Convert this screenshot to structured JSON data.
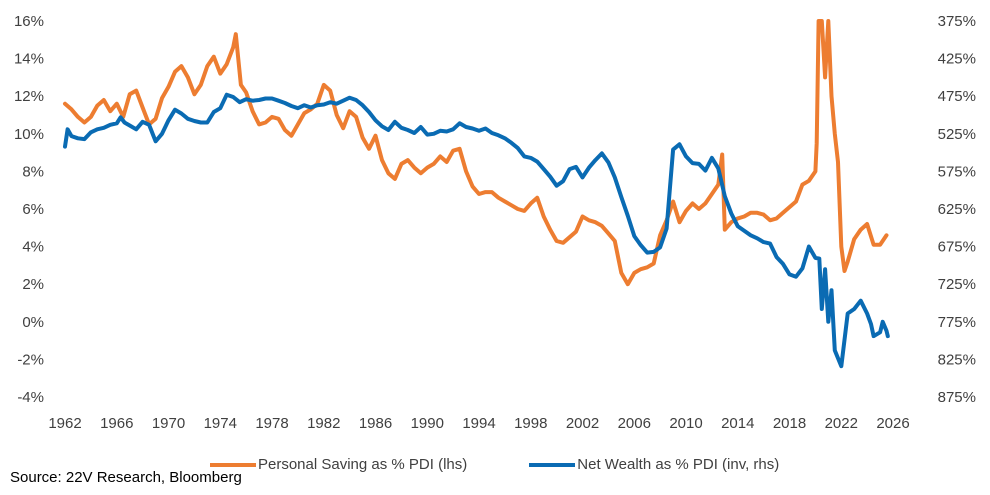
{
  "source": "Source: 22V Research, Bloomberg",
  "colors": {
    "saving": "#ED7D31",
    "wealth": "#0A6BB3"
  },
  "chart_data": {
    "type": "line",
    "title": "",
    "xlabel": "",
    "ylabel_left": "",
    "ylabel_right": "",
    "xlim": [
      1962,
      2026
    ],
    "x_ticks": [
      "1962",
      "1966",
      "1970",
      "1974",
      "1978",
      "1982",
      "1986",
      "1990",
      "1994",
      "1998",
      "2002",
      "2006",
      "2010",
      "2014",
      "2018",
      "2022",
      "2026"
    ],
    "y_left": {
      "min": -4,
      "max": 16,
      "step": 2,
      "ticks": [
        "16%",
        "14%",
        "12%",
        "10%",
        "8%",
        "6%",
        "4%",
        "2%",
        "0%",
        "-2%",
        "-4%"
      ]
    },
    "y_right": {
      "inverted": true,
      "min": 375,
      "max": 875,
      "step": 50,
      "ticks": [
        "375%",
        "425%",
        "475%",
        "525%",
        "575%",
        "625%",
        "675%",
        "725%",
        "775%",
        "825%",
        "875%"
      ]
    },
    "grid": false,
    "legend": "bottom",
    "series": [
      {
        "name": "Personal Saving as % PDI (lhs)",
        "axis": "left",
        "points": [
          [
            1962.0,
            11.6
          ],
          [
            1962.5,
            11.3
          ],
          [
            1963.0,
            10.9
          ],
          [
            1963.5,
            10.6
          ],
          [
            1964.0,
            10.9
          ],
          [
            1964.5,
            11.5
          ],
          [
            1965.0,
            11.8
          ],
          [
            1965.5,
            11.2
          ],
          [
            1966.0,
            11.6
          ],
          [
            1966.5,
            10.9
          ],
          [
            1967.0,
            12.1
          ],
          [
            1967.5,
            12.3
          ],
          [
            1968.0,
            11.4
          ],
          [
            1968.5,
            10.5
          ],
          [
            1969.0,
            10.8
          ],
          [
            1969.5,
            11.9
          ],
          [
            1970.0,
            12.5
          ],
          [
            1970.5,
            13.3
          ],
          [
            1971.0,
            13.6
          ],
          [
            1971.5,
            13.0
          ],
          [
            1972.0,
            12.1
          ],
          [
            1972.5,
            12.6
          ],
          [
            1973.0,
            13.6
          ],
          [
            1973.5,
            14.1
          ],
          [
            1974.0,
            13.2
          ],
          [
            1974.5,
            13.7
          ],
          [
            1975.0,
            14.6
          ],
          [
            1975.2,
            15.3
          ],
          [
            1975.6,
            12.6
          ],
          [
            1976.0,
            12.2
          ],
          [
            1976.5,
            11.2
          ],
          [
            1977.0,
            10.5
          ],
          [
            1977.5,
            10.6
          ],
          [
            1978.0,
            10.9
          ],
          [
            1978.5,
            10.8
          ],
          [
            1979.0,
            10.2
          ],
          [
            1979.5,
            9.9
          ],
          [
            1980.0,
            10.5
          ],
          [
            1980.5,
            11.1
          ],
          [
            1981.0,
            11.3
          ],
          [
            1981.5,
            11.6
          ],
          [
            1982.0,
            12.6
          ],
          [
            1982.5,
            12.3
          ],
          [
            1983.0,
            11.0
          ],
          [
            1983.5,
            10.3
          ],
          [
            1984.0,
            11.2
          ],
          [
            1984.5,
            10.9
          ],
          [
            1985.0,
            9.8
          ],
          [
            1985.5,
            9.2
          ],
          [
            1986.0,
            9.9
          ],
          [
            1986.5,
            8.6
          ],
          [
            1987.0,
            7.9
          ],
          [
            1987.5,
            7.6
          ],
          [
            1988.0,
            8.4
          ],
          [
            1988.5,
            8.6
          ],
          [
            1989.0,
            8.2
          ],
          [
            1989.5,
            7.9
          ],
          [
            1990.0,
            8.2
          ],
          [
            1990.5,
            8.4
          ],
          [
            1991.0,
            8.8
          ],
          [
            1991.5,
            8.5
          ],
          [
            1992.0,
            9.1
          ],
          [
            1992.5,
            9.2
          ],
          [
            1993.0,
            8.0
          ],
          [
            1993.5,
            7.2
          ],
          [
            1994.0,
            6.8
          ],
          [
            1994.5,
            6.9
          ],
          [
            1995.0,
            6.9
          ],
          [
            1995.5,
            6.6
          ],
          [
            1996.0,
            6.4
          ],
          [
            1996.5,
            6.2
          ],
          [
            1997.0,
            6.0
          ],
          [
            1997.5,
            5.9
          ],
          [
            1998.0,
            6.3
          ],
          [
            1998.5,
            6.6
          ],
          [
            1999.0,
            5.6
          ],
          [
            1999.5,
            4.9
          ],
          [
            2000.0,
            4.3
          ],
          [
            2000.5,
            4.2
          ],
          [
            2001.0,
            4.5
          ],
          [
            2001.5,
            4.8
          ],
          [
            2002.0,
            5.6
          ],
          [
            2002.5,
            5.4
          ],
          [
            2003.0,
            5.3
          ],
          [
            2003.5,
            5.1
          ],
          [
            2004.0,
            4.7
          ],
          [
            2004.5,
            4.3
          ],
          [
            2005.0,
            2.6
          ],
          [
            2005.5,
            2.0
          ],
          [
            2006.0,
            2.6
          ],
          [
            2006.5,
            2.8
          ],
          [
            2007.0,
            2.9
          ],
          [
            2007.5,
            3.1
          ],
          [
            2008.0,
            4.6
          ],
          [
            2008.5,
            5.4
          ],
          [
            2009.0,
            6.4
          ],
          [
            2009.5,
            5.3
          ],
          [
            2010.0,
            5.9
          ],
          [
            2010.5,
            6.3
          ],
          [
            2011.0,
            6.0
          ],
          [
            2011.5,
            6.3
          ],
          [
            2012.0,
            6.8
          ],
          [
            2012.5,
            7.3
          ],
          [
            2012.8,
            8.9
          ],
          [
            2013.0,
            4.9
          ],
          [
            2013.5,
            5.3
          ],
          [
            2014.0,
            5.5
          ],
          [
            2014.5,
            5.6
          ],
          [
            2015.0,
            5.8
          ],
          [
            2015.5,
            5.8
          ],
          [
            2016.0,
            5.7
          ],
          [
            2016.5,
            5.4
          ],
          [
            2017.0,
            5.5
          ],
          [
            2017.5,
            5.8
          ],
          [
            2018.0,
            6.1
          ],
          [
            2018.5,
            6.4
          ],
          [
            2019.0,
            7.3
          ],
          [
            2019.5,
            7.5
          ],
          [
            2020.0,
            8.0
          ],
          [
            2020.1,
            9.5
          ],
          [
            2020.25,
            16.0
          ],
          [
            2020.5,
            16.0
          ],
          [
            2020.75,
            13.0
          ],
          [
            2021.0,
            16.0
          ],
          [
            2021.25,
            12.0
          ],
          [
            2021.5,
            10.0
          ],
          [
            2021.75,
            8.5
          ],
          [
            2022.0,
            4.0
          ],
          [
            2022.25,
            2.7
          ],
          [
            2022.5,
            3.2
          ],
          [
            2023.0,
            4.4
          ],
          [
            2023.5,
            4.9
          ],
          [
            2024.0,
            5.2
          ],
          [
            2024.5,
            4.1
          ],
          [
            2025.0,
            4.1
          ],
          [
            2025.5,
            4.6
          ]
        ]
      },
      {
        "name": "Net Wealth as % PDI (inv, rhs)",
        "axis": "right",
        "points": [
          [
            1962.0,
            542
          ],
          [
            1962.2,
            519
          ],
          [
            1962.5,
            528
          ],
          [
            1963.0,
            531
          ],
          [
            1963.5,
            532
          ],
          [
            1964.0,
            523
          ],
          [
            1964.5,
            519
          ],
          [
            1965.0,
            517
          ],
          [
            1965.5,
            513
          ],
          [
            1966.0,
            511
          ],
          [
            1966.3,
            503
          ],
          [
            1966.6,
            510
          ],
          [
            1967.0,
            514
          ],
          [
            1967.5,
            519
          ],
          [
            1968.0,
            509
          ],
          [
            1968.5,
            513
          ],
          [
            1969.0,
            535
          ],
          [
            1969.5,
            525
          ],
          [
            1970.0,
            507
          ],
          [
            1970.5,
            493
          ],
          [
            1971.0,
            498
          ],
          [
            1971.5,
            505
          ],
          [
            1972.0,
            508
          ],
          [
            1972.5,
            510
          ],
          [
            1973.0,
            510
          ],
          [
            1973.5,
            496
          ],
          [
            1974.0,
            491
          ],
          [
            1974.5,
            473
          ],
          [
            1975.0,
            476
          ],
          [
            1975.5,
            483
          ],
          [
            1976.0,
            479
          ],
          [
            1976.5,
            481
          ],
          [
            1977.0,
            480
          ],
          [
            1977.5,
            478
          ],
          [
            1978.0,
            478
          ],
          [
            1978.5,
            481
          ],
          [
            1979.0,
            484
          ],
          [
            1979.5,
            488
          ],
          [
            1980.0,
            491
          ],
          [
            1980.5,
            487
          ],
          [
            1981.0,
            490
          ],
          [
            1981.5,
            487
          ],
          [
            1982.0,
            486
          ],
          [
            1982.5,
            483
          ],
          [
            1983.0,
            485
          ],
          [
            1983.5,
            481
          ],
          [
            1984.0,
            477
          ],
          [
            1984.5,
            480
          ],
          [
            1985.0,
            487
          ],
          [
            1985.5,
            496
          ],
          [
            1986.0,
            507
          ],
          [
            1986.5,
            515
          ],
          [
            1987.0,
            520
          ],
          [
            1987.5,
            509
          ],
          [
            1988.0,
            517
          ],
          [
            1988.5,
            520
          ],
          [
            1989.0,
            524
          ],
          [
            1989.5,
            516
          ],
          [
            1990.0,
            526
          ],
          [
            1990.5,
            525
          ],
          [
            1991.0,
            521
          ],
          [
            1991.5,
            522
          ],
          [
            1992.0,
            519
          ],
          [
            1992.5,
            511
          ],
          [
            1993.0,
            516
          ],
          [
            1993.5,
            518
          ],
          [
            1994.0,
            521
          ],
          [
            1994.5,
            518
          ],
          [
            1995.0,
            524
          ],
          [
            1995.5,
            527
          ],
          [
            1996.0,
            531
          ],
          [
            1996.5,
            537
          ],
          [
            1997.0,
            544
          ],
          [
            1997.5,
            555
          ],
          [
            1998.0,
            557
          ],
          [
            1998.5,
            562
          ],
          [
            1999.0,
            572
          ],
          [
            1999.5,
            582
          ],
          [
            2000.0,
            594
          ],
          [
            2000.5,
            588
          ],
          [
            2001.0,
            572
          ],
          [
            2001.5,
            569
          ],
          [
            2002.0,
            583
          ],
          [
            2002.5,
            570
          ],
          [
            2003.0,
            560
          ],
          [
            2003.5,
            551
          ],
          [
            2004.0,
            563
          ],
          [
            2004.5,
            583
          ],
          [
            2005.0,
            609
          ],
          [
            2005.5,
            634
          ],
          [
            2006.0,
            661
          ],
          [
            2006.5,
            673
          ],
          [
            2007.0,
            683
          ],
          [
            2007.5,
            682
          ],
          [
            2008.0,
            676
          ],
          [
            2008.5,
            651
          ],
          [
            2009.0,
            546
          ],
          [
            2009.5,
            539
          ],
          [
            2010.0,
            555
          ],
          [
            2010.5,
            564
          ],
          [
            2011.0,
            565
          ],
          [
            2011.5,
            574
          ],
          [
            2012.0,
            557
          ],
          [
            2012.5,
            571
          ],
          [
            2013.0,
            608
          ],
          [
            2013.5,
            631
          ],
          [
            2014.0,
            648
          ],
          [
            2014.5,
            654
          ],
          [
            2015.0,
            660
          ],
          [
            2015.5,
            664
          ],
          [
            2016.0,
            669
          ],
          [
            2016.5,
            671
          ],
          [
            2017.0,
            689
          ],
          [
            2017.5,
            698
          ],
          [
            2018.0,
            712
          ],
          [
            2018.5,
            715
          ],
          [
            2019.0,
            704
          ],
          [
            2019.5,
            675
          ],
          [
            2020.0,
            690
          ],
          [
            2020.3,
            691
          ],
          [
            2020.5,
            758
          ],
          [
            2020.75,
            705
          ],
          [
            2021.0,
            775
          ],
          [
            2021.25,
            733
          ],
          [
            2021.5,
            813
          ],
          [
            2022.0,
            834
          ],
          [
            2022.5,
            764
          ],
          [
            2023.0,
            758
          ],
          [
            2023.5,
            747
          ],
          [
            2024.0,
            764
          ],
          [
            2024.3,
            778
          ],
          [
            2024.5,
            794
          ],
          [
            2025.0,
            789
          ],
          [
            2025.2,
            775
          ],
          [
            2025.5,
            787
          ],
          [
            2025.6,
            794
          ]
        ]
      }
    ]
  }
}
